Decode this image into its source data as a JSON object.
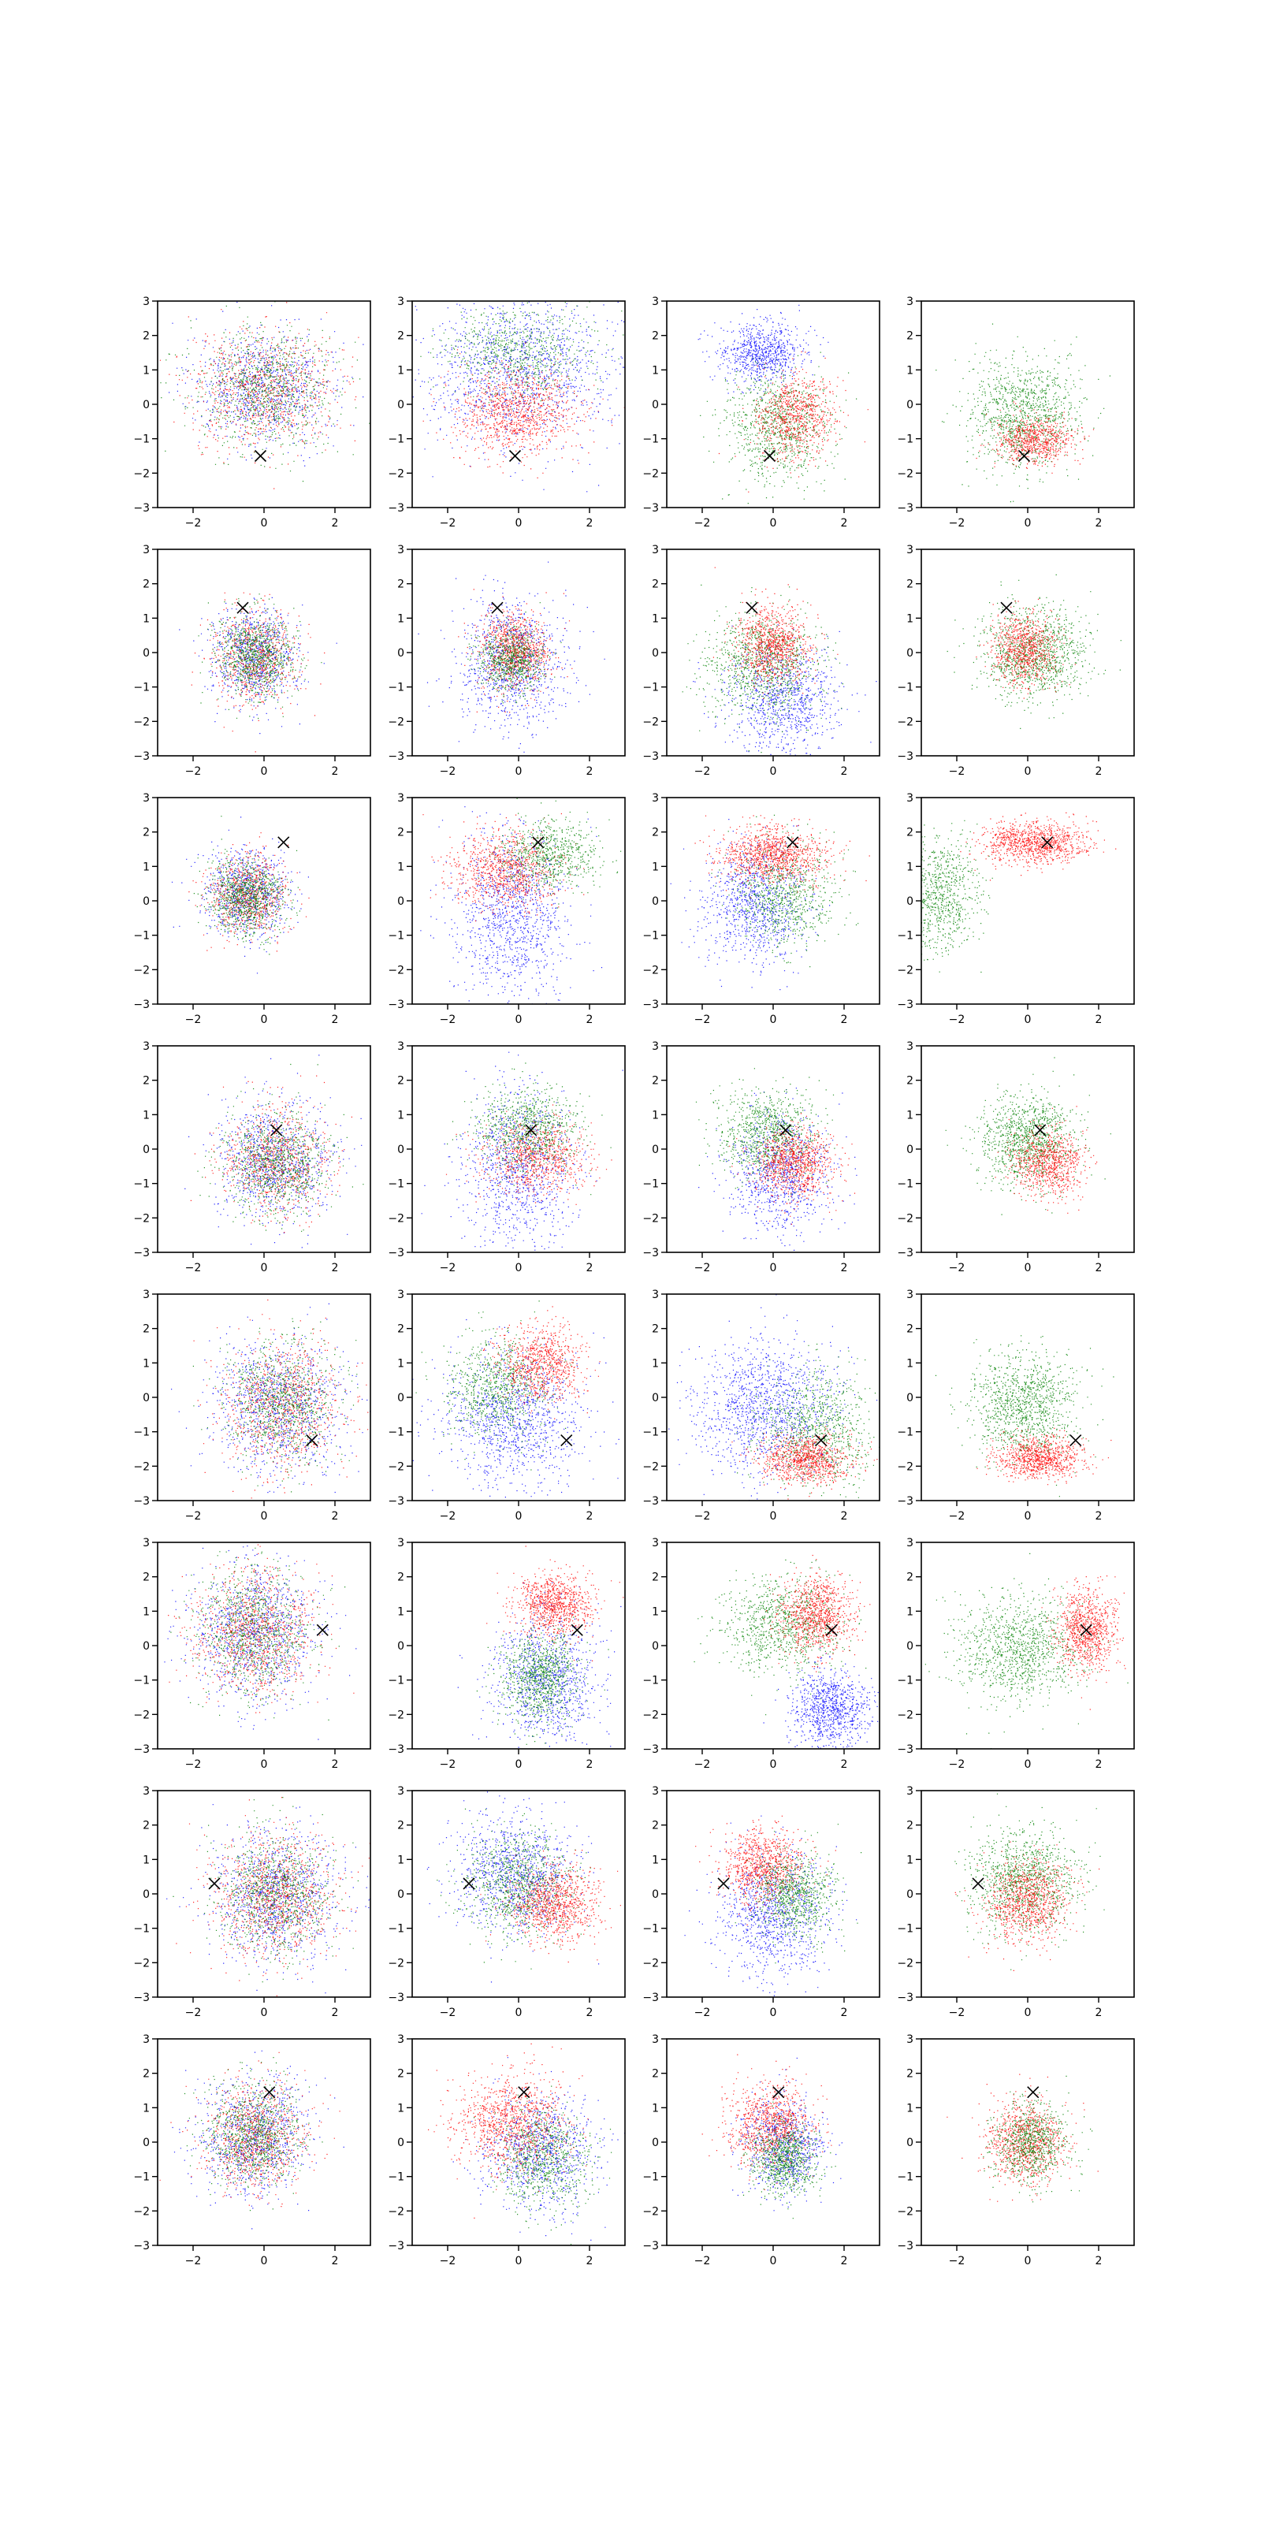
{
  "chart_data": {
    "type": "scatter",
    "layout": {
      "rows": 8,
      "cols": 4
    },
    "xlim": [
      -3,
      3
    ],
    "ylim": [
      -3,
      3
    ],
    "xticks": [
      -2,
      0,
      2
    ],
    "yticks": [
      -3,
      -2,
      -1,
      0,
      1,
      2,
      3
    ],
    "xtick_labels": [
      "−2",
      "0",
      "2"
    ],
    "ytick_labels": [
      "−3",
      "−2",
      "−1",
      "0",
      "1",
      "2",
      "3"
    ],
    "grid": false,
    "legend": "none",
    "colors": {
      "red": "#ff0000",
      "green": "#008000",
      "blue": "#0000ff",
      "marker": "#000000"
    },
    "marker_symbol": "x",
    "rows": [
      {
        "marker": {
          "x": -0.1,
          "y": -1.5
        },
        "panels": [
          [
            {
              "color": "blue",
              "cx": 0.0,
              "cy": 0.5,
              "sx": 1.0,
              "sy": 0.85,
              "n": 900
            },
            {
              "color": "red",
              "cx": 0.0,
              "cy": 0.45,
              "sx": 1.0,
              "sy": 0.85,
              "n": 900
            },
            {
              "color": "green",
              "cx": 0.0,
              "cy": 0.45,
              "sx": 1.0,
              "sy": 0.85,
              "n": 900
            }
          ],
          [
            {
              "color": "blue",
              "cx": 0.0,
              "cy": 1.0,
              "sx": 1.35,
              "sy": 1.05,
              "n": 1300
            },
            {
              "color": "green",
              "cx": 0.0,
              "cy": 1.55,
              "sx": 1.0,
              "sy": 0.7,
              "n": 700
            },
            {
              "color": "red",
              "cx": 0.0,
              "cy": -0.2,
              "sx": 0.85,
              "sy": 0.65,
              "n": 1000
            }
          ],
          [
            {
              "color": "blue",
              "cx": -0.35,
              "cy": 1.5,
              "sx": 0.55,
              "sy": 0.45,
              "n": 800
            },
            {
              "color": "green",
              "cx": 0.15,
              "cy": -0.6,
              "sx": 0.75,
              "sy": 0.75,
              "n": 900
            },
            {
              "color": "red",
              "cx": 0.65,
              "cy": -0.35,
              "sx": 0.55,
              "sy": 0.6,
              "n": 800
            }
          ],
          [
            {
              "color": "green",
              "cx": -0.1,
              "cy": -0.25,
              "sx": 0.75,
              "sy": 0.8,
              "n": 1100
            },
            {
              "color": "red",
              "cx": 0.2,
              "cy": -1.0,
              "sx": 0.55,
              "sy": 0.35,
              "n": 700
            }
          ]
        ]
      },
      {
        "marker": {
          "x": -0.6,
          "y": 1.3
        },
        "panels": [
          [
            {
              "color": "blue",
              "cx": -0.25,
              "cy": -0.1,
              "sx": 0.6,
              "sy": 0.7,
              "n": 800
            },
            {
              "color": "red",
              "cx": -0.25,
              "cy": -0.1,
              "sx": 0.6,
              "sy": 0.7,
              "n": 700
            },
            {
              "color": "green",
              "cx": -0.25,
              "cy": -0.1,
              "sx": 0.55,
              "sy": 0.6,
              "n": 900
            }
          ],
          [
            {
              "color": "blue",
              "cx": -0.2,
              "cy": -0.3,
              "sx": 0.75,
              "sy": 0.9,
              "n": 1000
            },
            {
              "color": "red",
              "cx": -0.1,
              "cy": 0.05,
              "sx": 0.5,
              "sy": 0.55,
              "n": 900
            },
            {
              "color": "green",
              "cx": -0.2,
              "cy": -0.2,
              "sx": 0.45,
              "sy": 0.45,
              "n": 700
            }
          ],
          [
            {
              "color": "blue",
              "cx": 0.25,
              "cy": -1.35,
              "sx": 0.8,
              "sy": 0.8,
              "n": 900
            },
            {
              "color": "green",
              "cx": -0.3,
              "cy": -0.3,
              "sx": 0.8,
              "sy": 0.75,
              "n": 1000
            },
            {
              "color": "red",
              "cx": 0.0,
              "cy": 0.25,
              "sx": 0.5,
              "sy": 0.55,
              "n": 900
            }
          ],
          [
            {
              "color": "green",
              "cx": 0.2,
              "cy": 0.0,
              "sx": 0.75,
              "sy": 0.65,
              "n": 1100
            },
            {
              "color": "red",
              "cx": -0.1,
              "cy": 0.1,
              "sx": 0.45,
              "sy": 0.5,
              "n": 800
            }
          ]
        ]
      },
      {
        "marker": {
          "x": 0.55,
          "y": 1.7
        },
        "panels": [
          [
            {
              "color": "blue",
              "cx": -0.5,
              "cy": 0.2,
              "sx": 0.6,
              "sy": 0.65,
              "n": 800
            },
            {
              "color": "red",
              "cx": -0.5,
              "cy": 0.2,
              "sx": 0.55,
              "sy": 0.6,
              "n": 700
            },
            {
              "color": "green",
              "cx": -0.5,
              "cy": 0.1,
              "sx": 0.5,
              "sy": 0.55,
              "n": 900
            }
          ],
          [
            {
              "color": "blue",
              "cx": -0.2,
              "cy": -0.4,
              "sx": 0.8,
              "sy": 1.2,
              "n": 1100
            },
            {
              "color": "red",
              "cx": -0.4,
              "cy": 0.9,
              "sx": 0.75,
              "sy": 0.55,
              "n": 900
            },
            {
              "color": "green",
              "cx": 0.9,
              "cy": 1.35,
              "sx": 0.65,
              "sy": 0.5,
              "n": 700
            }
          ],
          [
            {
              "color": "blue",
              "cx": -0.55,
              "cy": -0.1,
              "sx": 0.7,
              "sy": 0.85,
              "n": 900
            },
            {
              "color": "green",
              "cx": 0.3,
              "cy": 0.2,
              "sx": 0.7,
              "sy": 0.75,
              "n": 800
            },
            {
              "color": "red",
              "cx": 0.0,
              "cy": 1.35,
              "sx": 0.75,
              "sy": 0.4,
              "n": 1000
            }
          ],
          [
            {
              "color": "green",
              "cx": -2.5,
              "cy": 0.2,
              "sx": 0.55,
              "sy": 0.85,
              "n": 800
            },
            {
              "color": "red",
              "cx": 0.2,
              "cy": 1.7,
              "sx": 0.75,
              "sy": 0.3,
              "n": 1000
            }
          ]
        ]
      },
      {
        "marker": {
          "x": 0.35,
          "y": 0.55
        },
        "panels": [
          [
            {
              "color": "blue",
              "cx": 0.3,
              "cy": -0.3,
              "sx": 0.8,
              "sy": 0.85,
              "n": 900
            },
            {
              "color": "red",
              "cx": 0.3,
              "cy": -0.3,
              "sx": 0.75,
              "sy": 0.8,
              "n": 800
            },
            {
              "color": "green",
              "cx": 0.3,
              "cy": -0.4,
              "sx": 0.7,
              "sy": 0.75,
              "n": 900
            }
          ],
          [
            {
              "color": "blue",
              "cx": 0.0,
              "cy": -0.6,
              "sx": 0.8,
              "sy": 1.2,
              "n": 1000
            },
            {
              "color": "red",
              "cx": 0.5,
              "cy": -0.2,
              "sx": 0.75,
              "sy": 0.55,
              "n": 800
            },
            {
              "color": "green",
              "cx": 0.2,
              "cy": 0.6,
              "sx": 0.7,
              "sy": 0.6,
              "n": 800
            }
          ],
          [
            {
              "color": "blue",
              "cx": 0.15,
              "cy": -0.7,
              "sx": 0.7,
              "sy": 0.85,
              "n": 900
            },
            {
              "color": "green",
              "cx": -0.2,
              "cy": 0.5,
              "sx": 0.7,
              "sy": 0.65,
              "n": 900
            },
            {
              "color": "red",
              "cx": 0.6,
              "cy": -0.4,
              "sx": 0.55,
              "sy": 0.5,
              "n": 900
            }
          ],
          [
            {
              "color": "green",
              "cx": 0.0,
              "cy": 0.3,
              "sx": 0.65,
              "sy": 0.65,
              "n": 1100
            },
            {
              "color": "red",
              "cx": 0.55,
              "cy": -0.4,
              "sx": 0.5,
              "sy": 0.45,
              "n": 800
            }
          ]
        ]
      },
      {
        "marker": {
          "x": 1.35,
          "y": -1.25
        },
        "panels": [
          [
            {
              "color": "blue",
              "cx": 0.4,
              "cy": -0.2,
              "sx": 0.9,
              "sy": 1.0,
              "n": 1000
            },
            {
              "color": "red",
              "cx": 0.45,
              "cy": -0.2,
              "sx": 0.85,
              "sy": 0.95,
              "n": 900
            },
            {
              "color": "green",
              "cx": 0.45,
              "cy": -0.1,
              "sx": 0.75,
              "sy": 0.85,
              "n": 900
            }
          ],
          [
            {
              "color": "blue",
              "cx": -0.2,
              "cy": -0.7,
              "sx": 1.0,
              "sy": 1.0,
              "n": 1100
            },
            {
              "color": "green",
              "cx": -0.6,
              "cy": 0.3,
              "sx": 0.7,
              "sy": 0.75,
              "n": 800
            },
            {
              "color": "red",
              "cx": 0.6,
              "cy": 1.0,
              "sx": 0.6,
              "sy": 0.55,
              "n": 800
            }
          ],
          [
            {
              "color": "blue",
              "cx": -0.3,
              "cy": -0.3,
              "sx": 1.0,
              "sy": 0.95,
              "n": 1200
            },
            {
              "color": "green",
              "cx": 1.2,
              "cy": -0.9,
              "sx": 0.8,
              "sy": 0.85,
              "n": 900
            },
            {
              "color": "red",
              "cx": 0.9,
              "cy": -1.8,
              "sx": 0.65,
              "sy": 0.35,
              "n": 900
            }
          ],
          [
            {
              "color": "green",
              "cx": -0.15,
              "cy": -0.2,
              "sx": 0.75,
              "sy": 0.75,
              "n": 1100
            },
            {
              "color": "red",
              "cx": 0.3,
              "cy": -1.75,
              "sx": 0.6,
              "sy": 0.3,
              "n": 900
            }
          ]
        ]
      },
      {
        "marker": {
          "x": 1.65,
          "y": 0.45
        },
        "panels": [
          [
            {
              "color": "blue",
              "cx": -0.3,
              "cy": 0.4,
              "sx": 0.9,
              "sy": 1.0,
              "n": 1000
            },
            {
              "color": "red",
              "cx": -0.3,
              "cy": 0.4,
              "sx": 0.85,
              "sy": 0.95,
              "n": 1000
            },
            {
              "color": "green",
              "cx": -0.3,
              "cy": 0.4,
              "sx": 0.8,
              "sy": 0.9,
              "n": 900
            }
          ],
          [
            {
              "color": "blue",
              "cx": 0.8,
              "cy": -1.0,
              "sx": 0.75,
              "sy": 0.95,
              "n": 1000
            },
            {
              "color": "green",
              "cx": 0.6,
              "cy": -0.9,
              "sx": 0.55,
              "sy": 0.65,
              "n": 900
            },
            {
              "color": "red",
              "cx": 1.0,
              "cy": 1.2,
              "sx": 0.55,
              "sy": 0.45,
              "n": 900
            }
          ],
          [
            {
              "color": "blue",
              "cx": 1.6,
              "cy": -1.8,
              "sx": 0.55,
              "sy": 0.55,
              "n": 900
            },
            {
              "color": "green",
              "cx": 0.3,
              "cy": 0.6,
              "sx": 0.85,
              "sy": 0.7,
              "n": 900
            },
            {
              "color": "red",
              "cx": 1.2,
              "cy": 0.9,
              "sx": 0.5,
              "sy": 0.55,
              "n": 900
            }
          ],
          [
            {
              "color": "green",
              "cx": -0.2,
              "cy": -0.1,
              "sx": 0.9,
              "sy": 0.75,
              "n": 1100
            },
            {
              "color": "red",
              "cx": 1.6,
              "cy": 0.5,
              "sx": 0.4,
              "sy": 0.6,
              "n": 900
            }
          ]
        ]
      },
      {
        "marker": {
          "x": -1.4,
          "y": 0.3
        },
        "panels": [
          [
            {
              "color": "blue",
              "cx": 0.3,
              "cy": 0.0,
              "sx": 0.9,
              "sy": 0.95,
              "n": 1000
            },
            {
              "color": "red",
              "cx": 0.3,
              "cy": 0.0,
              "sx": 0.85,
              "sy": 0.9,
              "n": 1000
            },
            {
              "color": "green",
              "cx": 0.3,
              "cy": 0.0,
              "sx": 0.8,
              "sy": 0.85,
              "n": 900
            }
          ],
          [
            {
              "color": "blue",
              "cx": -0.2,
              "cy": 0.6,
              "sx": 0.85,
              "sy": 0.85,
              "n": 1000
            },
            {
              "color": "green",
              "cx": 0.0,
              "cy": 0.3,
              "sx": 0.75,
              "sy": 0.75,
              "n": 900
            },
            {
              "color": "red",
              "cx": 1.0,
              "cy": -0.3,
              "sx": 0.6,
              "sy": 0.55,
              "n": 900
            }
          ],
          [
            {
              "color": "blue",
              "cx": 0.0,
              "cy": -0.6,
              "sx": 0.75,
              "sy": 0.9,
              "n": 1000
            },
            {
              "color": "red",
              "cx": -0.3,
              "cy": 0.8,
              "sx": 0.55,
              "sy": 0.55,
              "n": 900
            },
            {
              "color": "green",
              "cx": 0.6,
              "cy": 0.0,
              "sx": 0.55,
              "sy": 0.6,
              "n": 800
            }
          ],
          [
            {
              "color": "green",
              "cx": -0.1,
              "cy": 0.4,
              "sx": 0.75,
              "sy": 0.75,
              "n": 1100
            },
            {
              "color": "red",
              "cx": 0.0,
              "cy": -0.2,
              "sx": 0.55,
              "sy": 0.6,
              "n": 900
            }
          ]
        ]
      },
      {
        "marker": {
          "x": 0.15,
          "y": 1.45
        },
        "panels": [
          [
            {
              "color": "blue",
              "cx": -0.3,
              "cy": 0.2,
              "sx": 0.75,
              "sy": 0.85,
              "n": 900
            },
            {
              "color": "red",
              "cx": -0.3,
              "cy": 0.2,
              "sx": 0.7,
              "sy": 0.8,
              "n": 900
            },
            {
              "color": "green",
              "cx": -0.3,
              "cy": 0.2,
              "sx": 0.65,
              "sy": 0.75,
              "n": 900
            }
          ],
          [
            {
              "color": "blue",
              "cx": 0.6,
              "cy": -0.3,
              "sx": 0.8,
              "sy": 0.8,
              "n": 900
            },
            {
              "color": "green",
              "cx": 0.7,
              "cy": -0.5,
              "sx": 0.65,
              "sy": 0.7,
              "n": 800
            },
            {
              "color": "red",
              "cx": -0.2,
              "cy": 0.6,
              "sx": 0.75,
              "sy": 0.7,
              "n": 1000
            }
          ],
          [
            {
              "color": "blue",
              "cx": 0.3,
              "cy": -0.1,
              "sx": 0.55,
              "sy": 0.65,
              "n": 800
            },
            {
              "color": "red",
              "cx": -0.1,
              "cy": 0.5,
              "sx": 0.6,
              "sy": 0.6,
              "n": 900
            },
            {
              "color": "green",
              "cx": 0.3,
              "cy": -0.5,
              "sx": 0.45,
              "sy": 0.5,
              "n": 800
            }
          ],
          [
            {
              "color": "red",
              "cx": -0.1,
              "cy": 0.0,
              "sx": 0.55,
              "sy": 0.6,
              "n": 900
            },
            {
              "color": "green",
              "cx": 0.1,
              "cy": 0.0,
              "sx": 0.5,
              "sy": 0.55,
              "n": 800
            }
          ]
        ]
      }
    ]
  }
}
